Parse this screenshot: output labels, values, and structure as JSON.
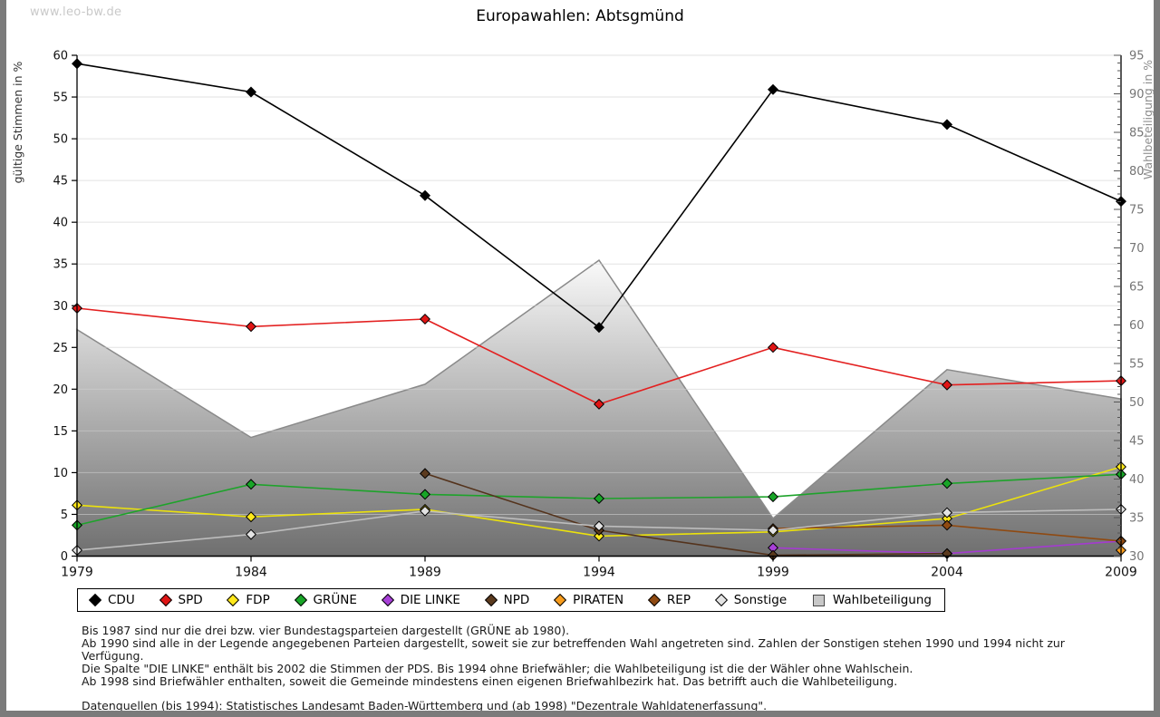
{
  "watermark": "www.leo-bw.de",
  "title": "Europawahlen: Abtsgmünd",
  "chart_data": {
    "type": "line",
    "title": "Europawahlen: Abtsgmünd",
    "x": [
      1979,
      1984,
      1989,
      1994,
      1999,
      2004,
      2009
    ],
    "left_axis": {
      "label": "gültige Stimmen in %",
      "min": 0,
      "max": 60,
      "tick_step": 5
    },
    "right_axis": {
      "label": "Wahlbeteiligung in %",
      "min": 30,
      "max": 95,
      "tick_step": 5
    },
    "grid": true,
    "legend_position": "bottom",
    "series": [
      {
        "name": "CDU",
        "axis": "left",
        "color": "#000000",
        "fill": "#000000",
        "values": [
          59.0,
          55.6,
          43.2,
          27.4,
          55.9,
          51.7,
          42.5
        ]
      },
      {
        "name": "SPD",
        "axis": "left",
        "color": "#e32020",
        "fill": "#e01515",
        "values": [
          29.7,
          27.5,
          28.4,
          18.2,
          25.0,
          20.5,
          21.0
        ]
      },
      {
        "name": "FDP",
        "axis": "left",
        "color": "#ece20c",
        "fill": "#ffe81a",
        "values": [
          6.1,
          4.7,
          5.6,
          2.4,
          2.9,
          4.5,
          10.7
        ]
      },
      {
        "name": "GRÜNE",
        "axis": "left",
        "color": "#1ea32b",
        "fill": "#18a527",
        "values": [
          3.7,
          8.6,
          7.4,
          6.9,
          7.1,
          8.7,
          9.8
        ]
      },
      {
        "name": "DIE LINKE",
        "axis": "left",
        "color": "#a43bd0",
        "fill": "#a840d8",
        "values": [
          null,
          null,
          null,
          null,
          1.0,
          0.3,
          1.8
        ]
      },
      {
        "name": "NPD",
        "axis": "left",
        "color": "#54331c",
        "fill": "#5b3a1e",
        "values": [
          null,
          null,
          9.9,
          3.1,
          0.1,
          0.3,
          null
        ]
      },
      {
        "name": "PIRATEN",
        "axis": "left",
        "color": "#f2941d",
        "fill": "#f89c1c",
        "values": [
          null,
          null,
          null,
          null,
          null,
          null,
          0.7
        ]
      },
      {
        "name": "REP",
        "axis": "left",
        "color": "#8f4a12",
        "fill": "#8f4a12",
        "values": [
          null,
          null,
          null,
          null,
          3.3,
          3.7,
          1.8
        ]
      },
      {
        "name": "Sonstige",
        "axis": "left",
        "color": "#bdbdbd",
        "fill": "#e3e3e3",
        "values": [
          0.7,
          2.6,
          5.4,
          3.6,
          3.1,
          5.2,
          5.6
        ]
      },
      {
        "name": "Wahlbeteiligung",
        "axis": "right",
        "type": "area",
        "color": "#8a8a8a",
        "values": [
          59.4,
          45.4,
          52.3,
          68.4,
          34.9,
          54.2,
          50.4
        ]
      }
    ]
  },
  "footnotes": [
    "Bis 1987 sind nur die drei bzw. vier Bundestagsparteien dargestellt (GRÜNE ab 1980).",
    "Ab 1990 sind alle in der Legende angegebenen Parteien dargestellt, soweit sie zur betreffenden Wahl angetreten sind. Zahlen der Sonstigen stehen 1990 und 1994 nicht zur Verfügung.",
    "Die Spalte \"DIE LINKE\" enthält bis 2002 die Stimmen der PDS. Bis 1994 ohne Briefwähler; die Wahlbeteiligung ist die der Wähler ohne Wahlschein.",
    "Ab 1998 sind Briefwähler enthalten, soweit die Gemeinde mindestens einen eigenen Briefwahlbezirk hat. Das betrifft auch die Wahlbeteiligung."
  ],
  "source_line": "Datenquellen (bis 1994): Statistisches Landesamt Baden-Württemberg und (ab 1998) \"Dezentrale Wahldatenerfassung\"."
}
